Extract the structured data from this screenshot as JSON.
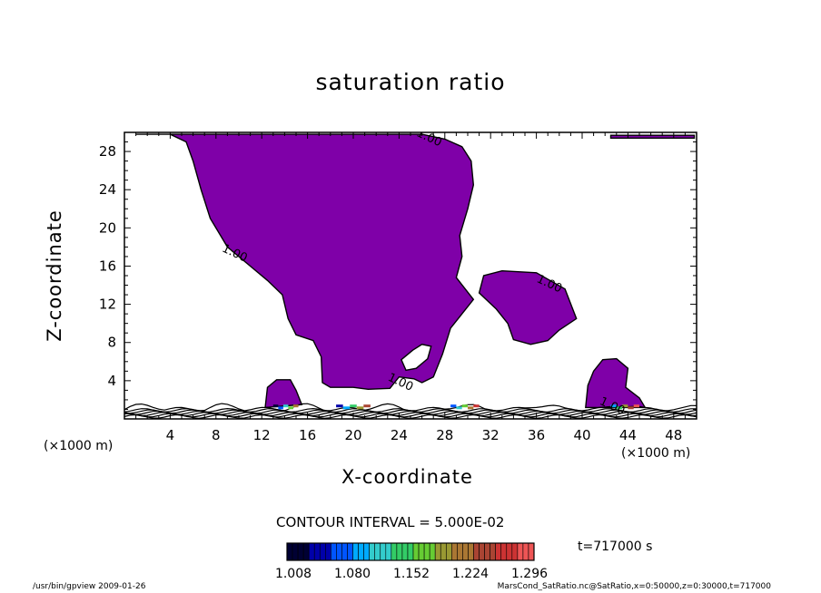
{
  "title": "saturation ratio",
  "footer": {
    "left": "/usr/bin/gpview   2009-01-26",
    "right": "MarsCond_SatRatio.nc@SatRatio,x=0:50000,z=0:30000,t=717000"
  },
  "contour_interval_text": "CONTOUR INTERVAL = 5.000E-02",
  "time_text": "t=717000 s",
  "x_unit_left": "(×1000 m)",
  "x_unit_right": "(×1000 m)",
  "colorbar": {
    "tick_labels": [
      "1.008",
      "1.080",
      "1.152",
      "1.224",
      "1.296"
    ],
    "colors": [
      "#000033",
      "#0000aa",
      "#0055ff",
      "#00aaff",
      "#33cccc",
      "#33cc66",
      "#66cc33",
      "#999933",
      "#aa7733",
      "#aa4433",
      "#cc3333",
      "#ee5555"
    ]
  },
  "chart_data": {
    "type": "contour",
    "title": "saturation ratio",
    "xlabel": "X-coordinate",
    "ylabel": "Z-coordinate",
    "x_unit": "(×1000 m)",
    "xlim": [
      0,
      50
    ],
    "ylim": [
      0,
      30
    ],
    "x_ticks": [
      4,
      8,
      12,
      16,
      20,
      24,
      28,
      32,
      36,
      40,
      44,
      48
    ],
    "y_ticks": [
      4,
      8,
      12,
      16,
      20,
      24,
      28
    ],
    "fill_color": "#7f00a8",
    "contour_labels": [
      {
        "text": "1.00",
        "x": 26.5,
        "z": 29.1
      },
      {
        "text": "1.00",
        "x": 9.5,
        "z": 17.0
      },
      {
        "text": "1.00",
        "x": 37.0,
        "z": 13.8
      },
      {
        "text": "1.00",
        "x": 24.0,
        "z": 3.5
      },
      {
        "text": "1.00",
        "x": 42.5,
        "z": 1.0
      }
    ],
    "regions": [
      {
        "name": "main plume",
        "points": [
          [
            1,
            29.8
          ],
          [
            4,
            29.8
          ],
          [
            5.4,
            29
          ],
          [
            6,
            27
          ],
          [
            6.7,
            24
          ],
          [
            7.5,
            21
          ],
          [
            9,
            18
          ],
          [
            11,
            16
          ],
          [
            12.5,
            14.5
          ],
          [
            13.8,
            13
          ],
          [
            14.3,
            10.5
          ],
          [
            15,
            8.8
          ],
          [
            16.5,
            8.2
          ],
          [
            17.2,
            6.5
          ],
          [
            17.3,
            3.8
          ],
          [
            18,
            3.3
          ],
          [
            20,
            3.3
          ],
          [
            21.3,
            3.1
          ],
          [
            23.2,
            3.2
          ],
          [
            24,
            4.4
          ],
          [
            25.3,
            4.2
          ],
          [
            26,
            3.8
          ],
          [
            27,
            4.4
          ],
          [
            27.8,
            6.8
          ],
          [
            28.5,
            9.5
          ],
          [
            30.5,
            12.5
          ],
          [
            29,
            14.8
          ],
          [
            29.5,
            17
          ],
          [
            29.3,
            19.2
          ],
          [
            30,
            22
          ],
          [
            30.5,
            24.5
          ],
          [
            30.3,
            27
          ],
          [
            29.5,
            28.5
          ],
          [
            28,
            29.3
          ],
          [
            26,
            29.8
          ],
          [
            24,
            29.8
          ],
          [
            4,
            29.8
          ]
        ]
      },
      {
        "name": "hole",
        "points": [
          [
            24.2,
            6.2
          ],
          [
            25.2,
            7.2
          ],
          [
            26,
            7.8
          ],
          [
            26.8,
            7.6
          ],
          [
            26.5,
            6.3
          ],
          [
            25.5,
            5.3
          ],
          [
            24.6,
            5.1
          ]
        ]
      },
      {
        "name": "right blob",
        "points": [
          [
            31,
            13.2
          ],
          [
            31.4,
            15
          ],
          [
            33,
            15.5
          ],
          [
            36,
            15.3
          ],
          [
            38.5,
            13.6
          ],
          [
            39.5,
            10.5
          ],
          [
            38,
            9.3
          ],
          [
            37,
            8.2
          ],
          [
            35.5,
            7.8
          ],
          [
            34,
            8.3
          ],
          [
            33.5,
            10
          ],
          [
            32.5,
            11.5
          ]
        ]
      },
      {
        "name": "small right blob",
        "points": [
          [
            40.3,
            1.2
          ],
          [
            40.5,
            3.5
          ],
          [
            41,
            5
          ],
          [
            41.8,
            6.2
          ],
          [
            43,
            6.3
          ],
          [
            44,
            5.3
          ],
          [
            43.8,
            3.3
          ],
          [
            45,
            2.2
          ],
          [
            45.5,
            1.2
          ]
        ]
      },
      {
        "name": "left small blob",
        "points": [
          [
            12.3,
            1.2
          ],
          [
            12.5,
            3.3
          ],
          [
            13.3,
            4.1
          ],
          [
            14.5,
            4.1
          ],
          [
            15,
            3
          ],
          [
            15.5,
            1.5
          ]
        ]
      },
      {
        "name": "top right strip",
        "points": [
          [
            42.5,
            29.7
          ],
          [
            49.8,
            29.7
          ],
          [
            49.8,
            29.4
          ],
          [
            42.5,
            29.4
          ]
        ]
      }
    ]
  }
}
